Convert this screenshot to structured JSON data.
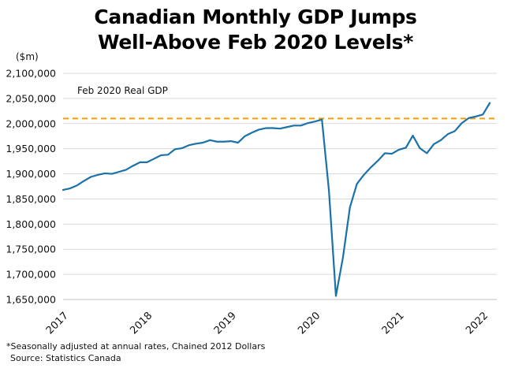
{
  "title": {
    "line1": "Canadian Monthly GDP Jumps",
    "line2": "Well-Above Feb 2020 Levels*"
  },
  "footnote": "*Seasonally adjusted at annual rates, Chained 2012 Dollars",
  "source": "Source: Statistics Canada",
  "chart_data": {
    "type": "line",
    "title": "Canadian Monthly GDP Jumps Well-Above Feb 2020 Levels*",
    "ylabel": "($m)",
    "ylim": [
      1650000,
      2100000
    ],
    "yticks": [
      1650000,
      1700000,
      1750000,
      1800000,
      1850000,
      1900000,
      1950000,
      2000000,
      2050000,
      2100000
    ],
    "ytick_labels": [
      "1,650,000",
      "1,700,000",
      "1,750,000",
      "1,800,000",
      "1,850,000",
      "1,900,000",
      "1,950,000",
      "2,000,000",
      "2,050,000",
      "2,100,000"
    ],
    "xtick_labels": [
      "2017",
      "2018",
      "2019",
      "2020",
      "2021",
      "2022"
    ],
    "xtick_positions": [
      0,
      12,
      24,
      36,
      48,
      60
    ],
    "x_domain": [
      0,
      62
    ],
    "grid": "horizontal",
    "line_color": "#1a72a8",
    "reference_line": {
      "label": "Feb 2020 Real GDP",
      "value": 2010000,
      "color": "#f39c12",
      "style": "dashed"
    },
    "series": [
      {
        "values": [
          1868000,
          1871000,
          1877000,
          1886000,
          1894000,
          1898000,
          1901000,
          1900000,
          1904000,
          1908000,
          1916000,
          1923000,
          1923000,
          1930000,
          1937000,
          1938000,
          1949000,
          1951000,
          1957000,
          1960000,
          1962000,
          1967000,
          1964000,
          1964000,
          1965000,
          1962000,
          1975000,
          1982000,
          1988000,
          1991000,
          1991000,
          1990000,
          1993000,
          1996000,
          1996000,
          2001000,
          2004000,
          2008000,
          1867000,
          1657000,
          1733000,
          1833000,
          1880000,
          1898000,
          1913000,
          1926000,
          1941000,
          1940000,
          1948000,
          1952000,
          1976000,
          1951000,
          1941000,
          1959000,
          1967000,
          1979000,
          1985000,
          2001000,
          2011000,
          2014000,
          2018000,
          2041000
        ]
      }
    ]
  }
}
